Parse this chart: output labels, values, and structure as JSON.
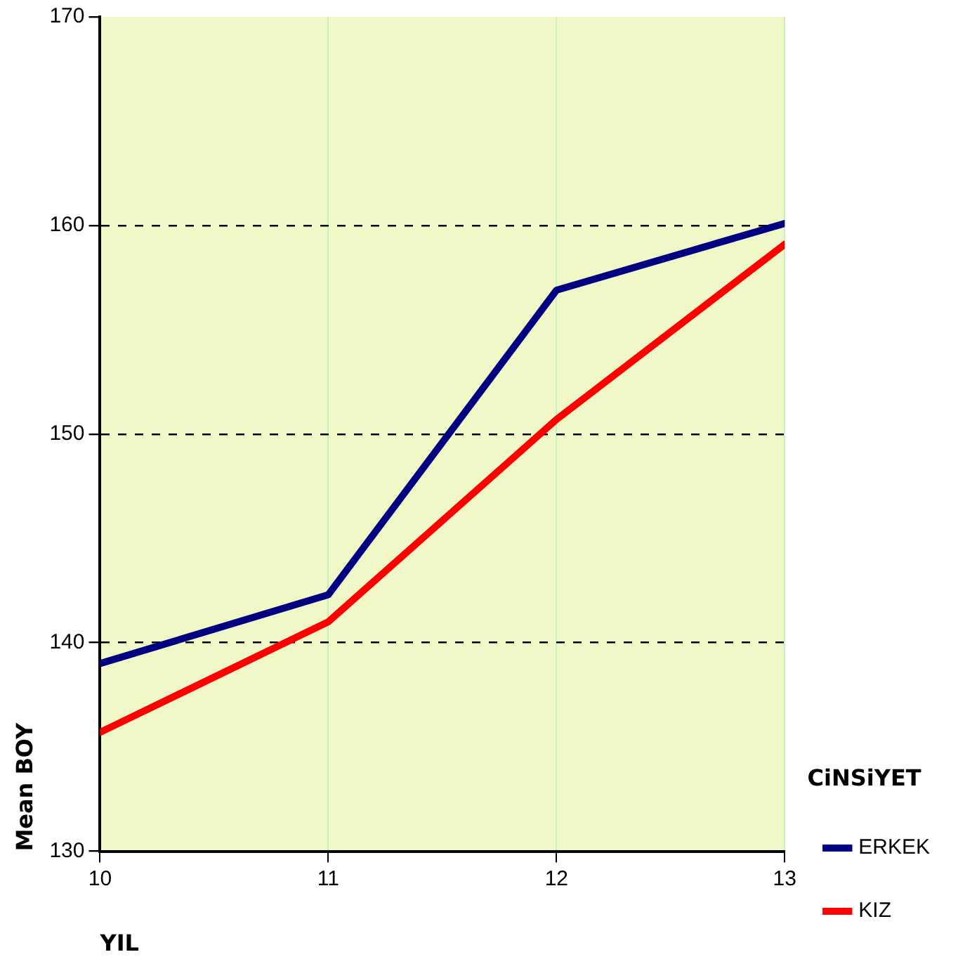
{
  "chart_data": {
    "type": "line",
    "xlabel": "YIL",
    "ylabel": "Mean BOY",
    "legend_title": "CiNSiYET",
    "x": [
      10,
      11,
      12,
      13
    ],
    "series": [
      {
        "name": "ERKEK",
        "color": "#000080",
        "values": [
          139.0,
          142.3,
          156.9,
          160.1
        ]
      },
      {
        "name": "KIZ",
        "color": "#ff0000",
        "values": [
          135.7,
          141.0,
          150.7,
          159.1
        ]
      }
    ],
    "xlim": [
      10,
      13
    ],
    "xticks": [
      10,
      11,
      12,
      13
    ],
    "ylim": [
      130,
      170
    ],
    "yticks": [
      130,
      140,
      150,
      160,
      170
    ],
    "grid": true,
    "legend": "right",
    "marker": "none",
    "line_style": "solid"
  }
}
